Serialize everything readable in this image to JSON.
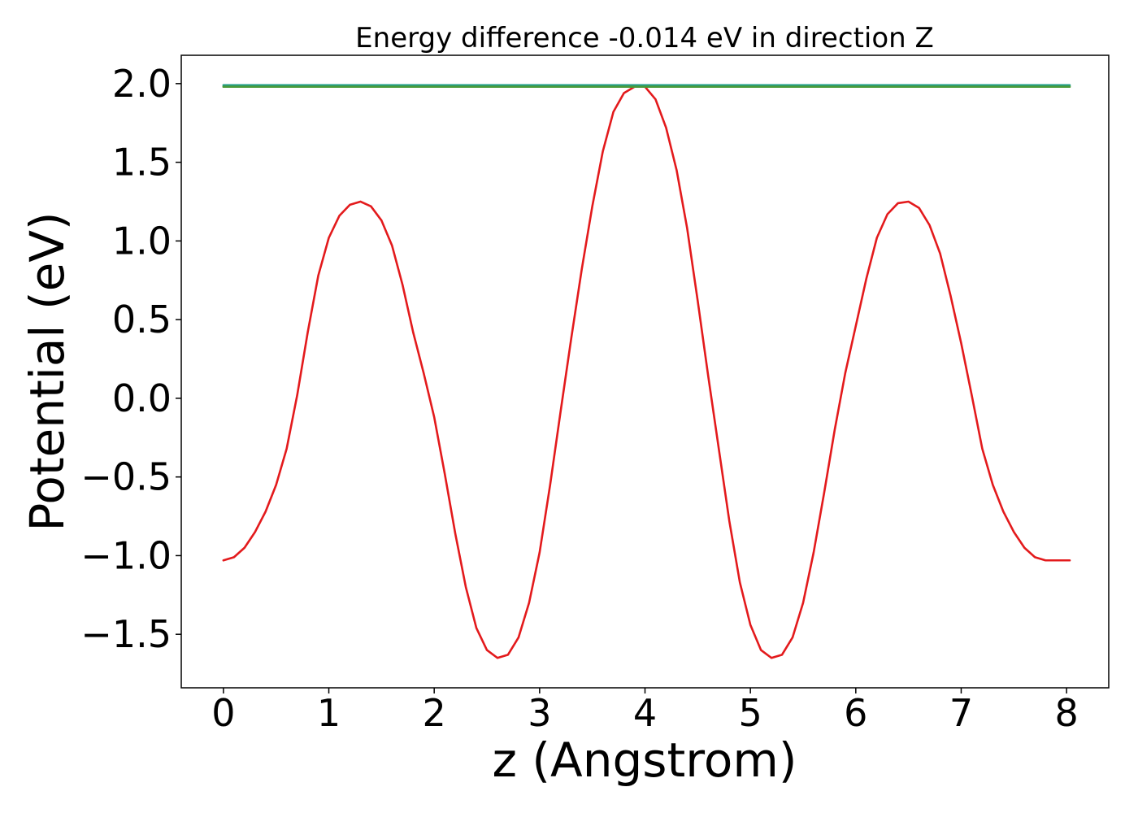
{
  "chart_data": {
    "type": "line",
    "title": "Energy difference -0.014 eV in direction Z",
    "xlabel": "z (Angstrom)",
    "ylabel": "Potential (eV)",
    "xlim": [
      -0.4,
      8.4
    ],
    "ylim": [
      -1.84,
      2.18
    ],
    "x_ticks": [
      0,
      1,
      2,
      3,
      4,
      5,
      6,
      7,
      8
    ],
    "x_tick_labels": [
      "0",
      "1",
      "2",
      "3",
      "4",
      "5",
      "6",
      "7",
      "8"
    ],
    "y_ticks": [
      -1.5,
      -1.0,
      -0.5,
      0.0,
      0.5,
      1.0,
      1.5,
      2.0
    ],
    "y_tick_labels": [
      "−1.5",
      "−1.0",
      "−0.5",
      "0.0",
      "0.5",
      "1.0",
      "1.5",
      "2.0"
    ],
    "grid": false,
    "legend": "none",
    "series": [
      {
        "color": "#e31a1c",
        "x": [
          0.0,
          0.1,
          0.2,
          0.3,
          0.4,
          0.5,
          0.6,
          0.7,
          0.8,
          0.9,
          1.0,
          1.1,
          1.2,
          1.3,
          1.4,
          1.5,
          1.6,
          1.7,
          1.8,
          1.9,
          2.0,
          2.1,
          2.2,
          2.3,
          2.4,
          2.5,
          2.6,
          2.7,
          2.8,
          2.9,
          3.0,
          3.1,
          3.2,
          3.3,
          3.4,
          3.5,
          3.6,
          3.7,
          3.8,
          3.9,
          4.0,
          4.1,
          4.2,
          4.3,
          4.4,
          4.5,
          4.6,
          4.7,
          4.8,
          4.9,
          5.0,
          5.1,
          5.2,
          5.3,
          5.4,
          5.5,
          5.6,
          5.7,
          5.8,
          5.9,
          6.0,
          6.1,
          6.2,
          6.3,
          6.4,
          6.5,
          6.6,
          6.7,
          6.8,
          6.9,
          7.0,
          7.1,
          7.2,
          7.3,
          7.4,
          7.5,
          7.6,
          7.7,
          7.8,
          7.9,
          8.0,
          8.03
        ],
        "y": [
          -1.03,
          -1.01,
          -0.95,
          -0.85,
          -0.72,
          -0.55,
          -0.32,
          0.02,
          0.42,
          0.78,
          1.02,
          1.16,
          1.23,
          1.25,
          1.22,
          1.13,
          0.97,
          0.72,
          0.42,
          0.16,
          -0.12,
          -0.48,
          -0.86,
          -1.2,
          -1.46,
          -1.6,
          -1.65,
          -1.63,
          -1.52,
          -1.3,
          -0.98,
          -0.55,
          -0.08,
          0.38,
          0.82,
          1.22,
          1.57,
          1.82,
          1.94,
          1.98,
          1.98,
          1.9,
          1.72,
          1.45,
          1.08,
          0.62,
          0.14,
          -0.32,
          -0.78,
          -1.17,
          -1.44,
          -1.6,
          -1.65,
          -1.63,
          -1.52,
          -1.3,
          -0.98,
          -0.6,
          -0.2,
          0.16,
          0.46,
          0.76,
          1.02,
          1.17,
          1.24,
          1.25,
          1.21,
          1.1,
          0.92,
          0.65,
          0.35,
          0.02,
          -0.32,
          -0.55,
          -0.72,
          -0.85,
          -0.95,
          -1.01,
          -1.03,
          -1.03,
          -1.03,
          -1.03
        ]
      },
      {
        "color": "#1f9e89",
        "x": [
          0.0,
          8.03
        ],
        "y": [
          1.99,
          1.99
        ]
      },
      {
        "color": "#4a9a3a",
        "x": [
          0.0,
          8.03
        ],
        "y": [
          1.98,
          1.98
        ]
      }
    ]
  }
}
